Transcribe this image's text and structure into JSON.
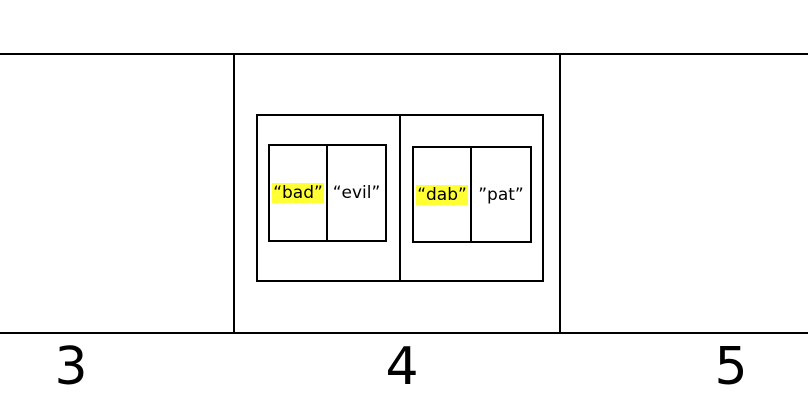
{
  "array": {
    "slots": [
      {
        "index": "3"
      },
      {
        "index": "4"
      },
      {
        "index": "5"
      }
    ],
    "bucket_4": {
      "pairs": [
        {
          "key": "“bad”",
          "value": "“evil”",
          "key_highlighted": true
        },
        {
          "key": "“dab”",
          "value": "”pat”",
          "key_highlighted": true
        }
      ]
    }
  },
  "colors": {
    "highlight": "#ffff33",
    "line": "#000000"
  }
}
